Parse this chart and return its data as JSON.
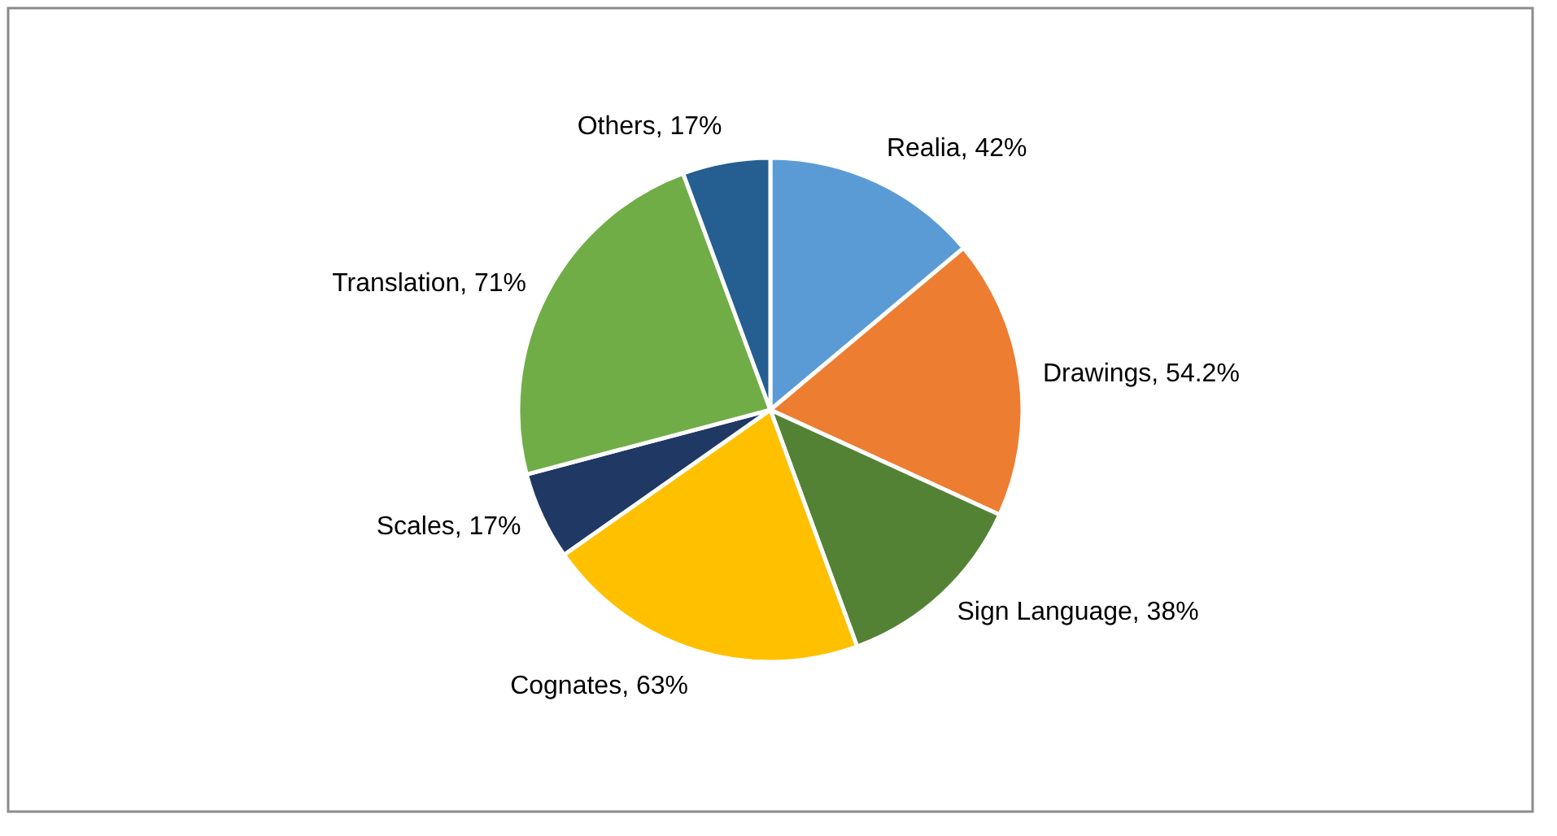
{
  "chart_data": {
    "type": "pie",
    "categories": [
      "Realia",
      "Drawings",
      "Sign Language",
      "Cognates",
      "Scales",
      "Translation",
      "Others"
    ],
    "values": [
      42,
      54.2,
      38,
      63,
      17,
      71,
      17
    ],
    "value_labels": [
      "42%",
      "54.2%",
      "38%",
      "63%",
      "17%",
      "71%",
      "17%"
    ],
    "colors": [
      "#5b9bd5",
      "#ed7d31",
      "#548235",
      "#ffc000",
      "#1f3864",
      "#70ad47",
      "#255e91"
    ],
    "legend": false
  }
}
